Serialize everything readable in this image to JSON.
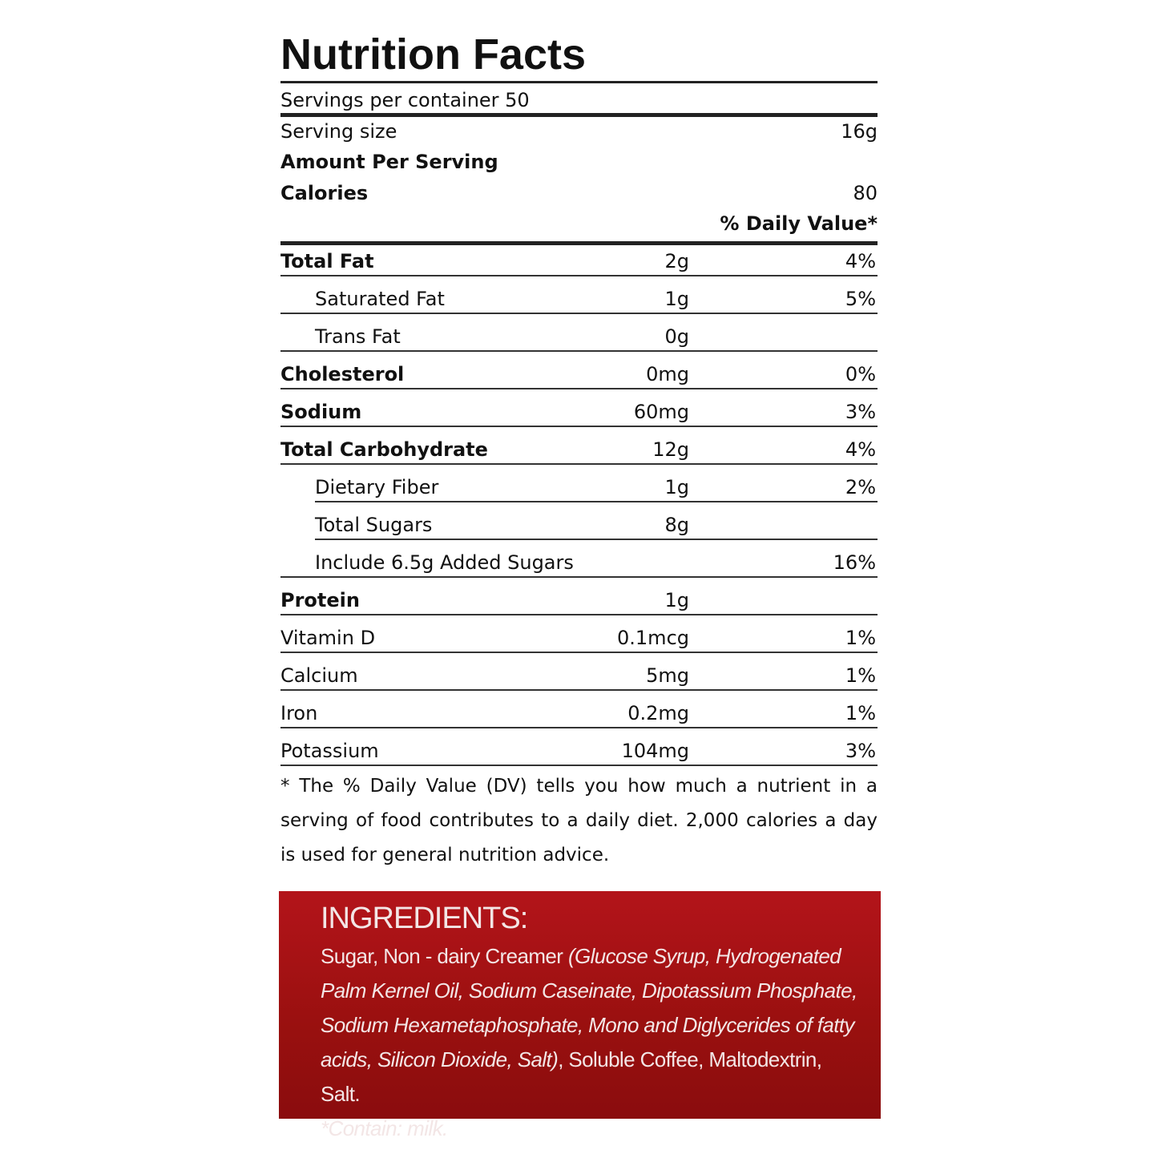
{
  "title": "Nutrition Facts",
  "servings": "Servings per container 50",
  "serving_size": {
    "label": "Serving size",
    "value": "16g"
  },
  "amount_per_serving": "Amount Per Serving",
  "calories": {
    "label": "Calories",
    "value": "80"
  },
  "daily_value_header": "% Daily Value*",
  "nutrients": [
    {
      "name": "Total Fat",
      "amount": "2g",
      "dv": "4%",
      "bold": true
    },
    {
      "name": "Saturated Fat",
      "amount": "1g",
      "dv": "5%",
      "level": 1
    },
    {
      "name": "Trans Fat",
      "amount": "0g",
      "level": 1
    },
    {
      "name": "Cholesterol",
      "amount": "0mg",
      "dv": "0%",
      "bold": true
    },
    {
      "name": "Sodium",
      "amount": "60mg",
      "dv": "3%",
      "bold": true
    },
    {
      "name": "Total Carbohydrate",
      "amount": "12g",
      "dv": "4%",
      "bold": true
    },
    {
      "name": "Dietary Fiber",
      "amount": "1g",
      "dv": "2%",
      "level": 1
    },
    {
      "name": "Total Sugars",
      "amount": "8g",
      "level": 1
    },
    {
      "name": "Include 6.5g Added Sugars",
      "dv": "16%",
      "level": 1
    },
    {
      "name": "Protein",
      "amount": "1g",
      "bold": true
    },
    {
      "name": "Vitamin D",
      "amount": "0.1mcg",
      "dv": "1%"
    },
    {
      "name": "Calcium",
      "amount": "5mg",
      "dv": "1%"
    },
    {
      "name": "Iron",
      "amount": "0.2mg",
      "dv": "1%"
    },
    {
      "name": "Potassium",
      "amount": "104mg",
      "dv": "3%"
    }
  ],
  "footnote": "* The % Daily Value (DV) tells you how much a nutrient in a serving of food contributes to a daily diet. 2,000 calories a day is used for general nutrition advice.",
  "ingredients": {
    "title": "INGREDIENTS:",
    "segments": [
      {
        "text": "Sugar, Non - dairy Creamer ",
        "italic": false
      },
      {
        "text": "(Glucose Syrup, Hydrogenated Palm Kernel Oil, Sodium Caseinate, Dipotassium Phosphate, Sodium Hexametaphosphate, Mono and Diglycerides of fatty acids, Silicon Dioxide, Salt)",
        "italic": true
      },
      {
        "text": ", Soluble Coffee, Maltodextrin, Salt.",
        "italic": false
      }
    ],
    "note": "*Contain: milk."
  }
}
